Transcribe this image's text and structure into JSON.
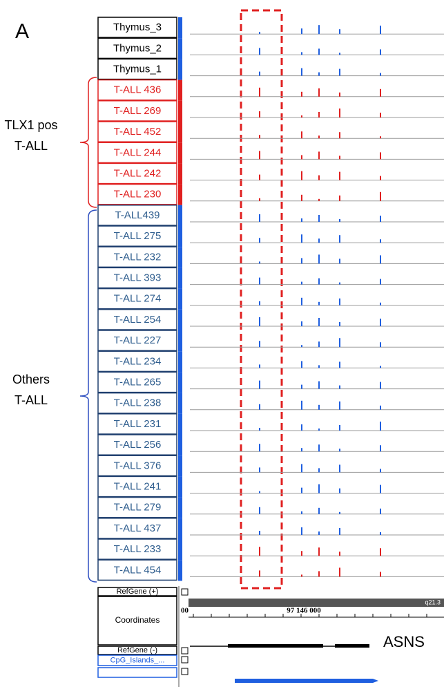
{
  "panel": "A",
  "tracks": [
    "Thymus_3",
    "Thymus_2",
    "Thymus_1",
    "T-ALL 436",
    "T-ALL 269",
    "T-ALL 452",
    "T-ALL 244",
    "T-ALL 242",
    "T-ALL 230",
    "T-ALL439",
    "T-ALL 275",
    "T-ALL 232",
    "T-ALL 393",
    "T-ALL 274",
    "T-ALL 254",
    "T-ALL 227",
    "T-ALL 234",
    "T-ALL 265",
    "T-ALL 238",
    "T-ALL 231",
    "T-ALL 256",
    "T-ALL 376",
    "T-ALL 241",
    "T-ALL 279",
    "T-ALL 437",
    "T-ALL 233",
    "T-ALL 454"
  ],
  "groups": [
    {
      "lines": [
        "TLX1 pos",
        "T-ALL"
      ]
    },
    {
      "lines": [
        "Others",
        "T-ALL"
      ]
    }
  ],
  "bottom_tracks": [
    "RefGene (+)",
    "Coordinates",
    "RefGene (-)",
    "CpG_Islands_..."
  ],
  "browser": {
    "cytoband": "q21.3",
    "coord_left": "00",
    "coord": "97 146 000",
    "gene": "ASNS"
  }
}
